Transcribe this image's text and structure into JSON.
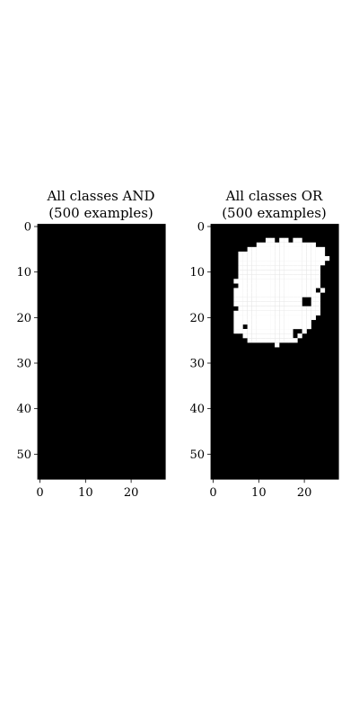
{
  "chart_data": [
    {
      "type": "heatmap",
      "title_line1": "All classes AND",
      "title_line2": "(500 examples)",
      "xlim": [
        -0.5,
        27.5
      ],
      "ylim": [
        55.5,
        -0.5
      ],
      "xticks": [
        0,
        10,
        20
      ],
      "yticks": [
        0,
        10,
        20,
        30,
        40,
        50
      ],
      "rows": [],
      "colors": {
        "on": "#ffffff",
        "off": "#000000"
      }
    },
    {
      "type": "heatmap",
      "title_line1": "All classes OR",
      "title_line2": "(500 examples)",
      "xlim": [
        -0.5,
        27.5
      ],
      "ylim": [
        55.5,
        -0.5
      ],
      "xticks": [
        0,
        10,
        20
      ],
      "yticks": [
        0,
        10,
        20,
        30,
        40,
        50
      ],
      "rows": [
        {
          "y": 3,
          "x": [
            12,
            13,
            15,
            16,
            18,
            19
          ]
        },
        {
          "y": 4,
          "x": [
            10,
            11,
            12,
            13,
            14,
            15,
            16,
            17,
            18,
            19,
            20,
            21,
            22
          ]
        },
        {
          "y": 5,
          "x": [
            8,
            9,
            10,
            11,
            12,
            13,
            14,
            15,
            16,
            17,
            18,
            19,
            20,
            21,
            22,
            23,
            24
          ]
        },
        {
          "y": 6,
          "x": [
            6,
            7,
            8,
            9,
            10,
            11,
            12,
            13,
            14,
            15,
            16,
            17,
            18,
            19,
            20,
            21,
            22,
            23,
            24
          ]
        },
        {
          "y": 7,
          "x": [
            6,
            7,
            8,
            9,
            10,
            11,
            12,
            13,
            14,
            15,
            16,
            17,
            18,
            19,
            20,
            21,
            22,
            23,
            24,
            25
          ]
        },
        {
          "y": 8,
          "x": [
            6,
            7,
            8,
            9,
            10,
            11,
            12,
            13,
            14,
            15,
            16,
            17,
            18,
            19,
            20,
            21,
            22,
            23,
            24
          ]
        },
        {
          "y": 9,
          "x": [
            6,
            7,
            8,
            9,
            10,
            11,
            12,
            13,
            14,
            15,
            16,
            17,
            18,
            19,
            20,
            21,
            22,
            23
          ]
        },
        {
          "y": 10,
          "x": [
            6,
            7,
            8,
            9,
            10,
            11,
            12,
            13,
            14,
            15,
            16,
            17,
            18,
            19,
            20,
            21,
            22,
            23
          ]
        },
        {
          "y": 11,
          "x": [
            6,
            7,
            8,
            9,
            10,
            11,
            12,
            13,
            14,
            15,
            16,
            17,
            18,
            19,
            20,
            21,
            22,
            23
          ]
        },
        {
          "y": 12,
          "x": [
            5,
            6,
            7,
            8,
            9,
            10,
            11,
            12,
            13,
            14,
            15,
            16,
            17,
            18,
            19,
            20,
            21,
            22,
            23
          ]
        },
        {
          "y": 13,
          "x": [
            6,
            7,
            8,
            9,
            10,
            11,
            12,
            13,
            14,
            15,
            16,
            17,
            18,
            19,
            20,
            21,
            22,
            23
          ]
        },
        {
          "y": 14,
          "x": [
            5,
            6,
            7,
            8,
            9,
            10,
            11,
            12,
            13,
            14,
            15,
            16,
            17,
            18,
            19,
            20,
            21,
            22,
            24
          ]
        },
        {
          "y": 15,
          "x": [
            5,
            6,
            7,
            8,
            9,
            10,
            11,
            12,
            13,
            14,
            15,
            16,
            17,
            18,
            19,
            20,
            21,
            22,
            23
          ]
        },
        {
          "y": 16,
          "x": [
            5,
            6,
            7,
            8,
            9,
            10,
            11,
            12,
            13,
            14,
            15,
            16,
            17,
            18,
            19,
            22,
            23
          ]
        },
        {
          "y": 17,
          "x": [
            5,
            6,
            7,
            8,
            9,
            10,
            11,
            12,
            13,
            14,
            15,
            16,
            17,
            18,
            19,
            22,
            23
          ]
        },
        {
          "y": 18,
          "x": [
            6,
            7,
            8,
            9,
            10,
            11,
            12,
            13,
            14,
            15,
            16,
            17,
            18,
            19,
            20,
            21,
            22,
            23
          ]
        },
        {
          "y": 19,
          "x": [
            5,
            6,
            7,
            8,
            9,
            10,
            11,
            12,
            13,
            14,
            15,
            16,
            17,
            18,
            19,
            20,
            21,
            22,
            23
          ]
        },
        {
          "y": 20,
          "x": [
            5,
            6,
            7,
            8,
            9,
            10,
            11,
            12,
            13,
            14,
            15,
            16,
            17,
            18,
            19,
            20,
            21,
            22
          ]
        },
        {
          "y": 21,
          "x": [
            5,
            6,
            7,
            8,
            9,
            10,
            11,
            12,
            13,
            14,
            15,
            16,
            17,
            18,
            19,
            20,
            21
          ]
        },
        {
          "y": 22,
          "x": [
            5,
            6,
            8,
            9,
            10,
            11,
            12,
            13,
            14,
            15,
            16,
            17,
            18,
            19,
            20,
            21
          ]
        },
        {
          "y": 23,
          "x": [
            5,
            6,
            7,
            8,
            9,
            10,
            11,
            12,
            13,
            14,
            15,
            16,
            17,
            20
          ]
        },
        {
          "y": 24,
          "x": [
            7,
            8,
            9,
            10,
            11,
            12,
            13,
            14,
            15,
            16,
            17,
            19
          ]
        },
        {
          "y": 25,
          "x": [
            8,
            9,
            10,
            11,
            12,
            13,
            14,
            15,
            16,
            17,
            18
          ]
        },
        {
          "y": 26,
          "x": [
            14
          ]
        }
      ],
      "colors": {
        "on": "#ffffff",
        "off": "#000000"
      }
    }
  ]
}
